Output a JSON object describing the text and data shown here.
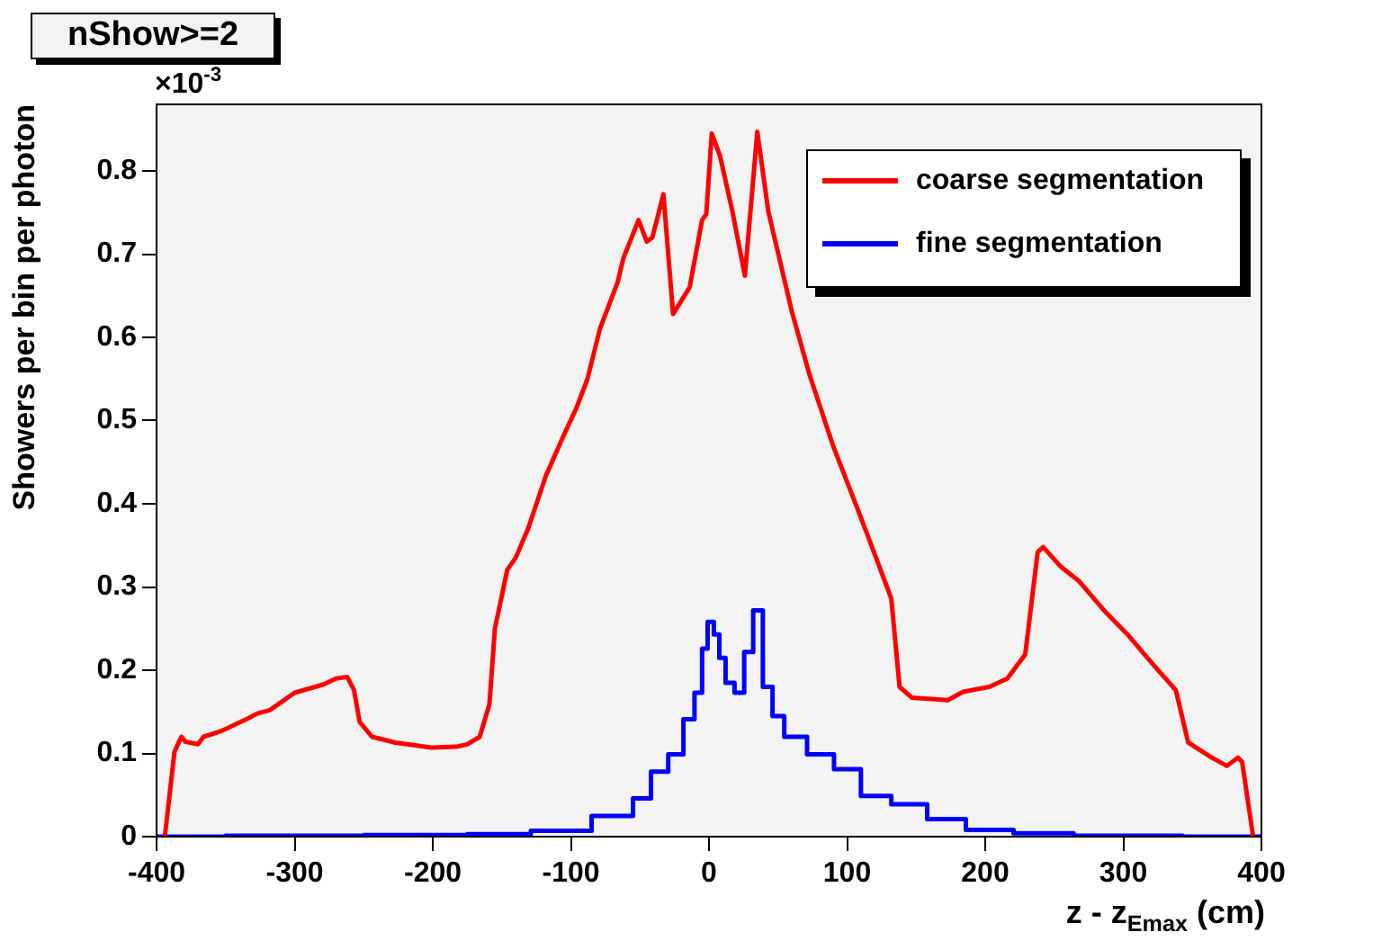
{
  "chart_data": {
    "type": "line",
    "title": "nShow>=2",
    "xlabel": "z - z$_{Emax}$ (cm)",
    "ylabel": "Showers per bin per photon",
    "annotations": [
      "×10$^{-3}$"
    ],
    "xlim": [
      -400,
      400
    ],
    "xticks": [
      -400,
      -300,
      -200,
      -100,
      0,
      100,
      200,
      300,
      400
    ],
    "ylim": [
      0,
      0.88
    ],
    "yticks": [
      0,
      0.1,
      0.2,
      0.3,
      0.4,
      0.5,
      0.6,
      0.7,
      0.8
    ],
    "grid": false,
    "legend": "top right",
    "marker": "none",
    "line_style": "solid",
    "series": [
      {
        "name": "coarse segmentation",
        "color": "#ff0000",
        "type": "line",
        "x": [
          -394,
          -387,
          -382,
          -379,
          -370,
          -366,
          -353,
          -335,
          -327,
          -318,
          -300,
          -279,
          -270,
          -262,
          -257,
          -253,
          -244,
          -227,
          -201,
          -183,
          -175,
          -166,
          -159,
          -155,
          -146,
          -140,
          -131,
          -118,
          -105,
          -96,
          -88,
          -79,
          -66,
          -62,
          -51,
          -45,
          -41,
          -33,
          -26,
          -14,
          -5,
          -2,
          2,
          8,
          17,
          26,
          35,
          43,
          60,
          73,
          90,
          108,
          121,
          132,
          138,
          147,
          173,
          184,
          203,
          216,
          229,
          238,
          242,
          255,
          268,
          286,
          303,
          321,
          338,
          347,
          364,
          375,
          383,
          386,
          394
        ],
        "values": [
          0,
          0.102,
          0.12,
          0.114,
          0.111,
          0.12,
          0.127,
          0.141,
          0.148,
          0.152,
          0.173,
          0.183,
          0.19,
          0.192,
          0.176,
          0.138,
          0.12,
          0.113,
          0.107,
          0.108,
          0.111,
          0.12,
          0.159,
          0.25,
          0.321,
          0.335,
          0.37,
          0.434,
          0.483,
          0.515,
          0.55,
          0.61,
          0.667,
          0.695,
          0.741,
          0.715,
          0.72,
          0.772,
          0.628,
          0.66,
          0.741,
          0.748,
          0.845,
          0.818,
          0.751,
          0.674,
          0.847,
          0.751,
          0.631,
          0.554,
          0.469,
          0.392,
          0.335,
          0.286,
          0.18,
          0.167,
          0.164,
          0.174,
          0.18,
          0.19,
          0.219,
          0.342,
          0.348,
          0.324,
          0.307,
          0.272,
          0.243,
          0.208,
          0.176,
          0.113,
          0.095,
          0.085,
          0.095,
          0.09,
          0
        ]
      },
      {
        "name": "fine segmentation",
        "color": "#0000ff",
        "type": "step",
        "x": [
          -400,
          -300,
          -200,
          -150,
          -108,
          -62,
          -48,
          -36,
          -23,
          -14,
          -7,
          -3,
          1,
          6,
          9,
          15,
          22,
          29,
          35,
          43,
          49,
          60,
          82,
          99,
          121,
          143,
          173,
          199,
          242,
          286,
          400
        ],
        "values": [
          0,
          0.001,
          0.002,
          0.003,
          0.007,
          0.025,
          0.046,
          0.078,
          0.099,
          0.141,
          0.173,
          0.226,
          0.258,
          0.243,
          0.215,
          0.185,
          0.173,
          0.222,
          0.272,
          0.18,
          0.145,
          0.12,
          0.099,
          0.081,
          0.049,
          0.039,
          0.021,
          0.008,
          0.004,
          0.001,
          0
        ]
      }
    ]
  }
}
